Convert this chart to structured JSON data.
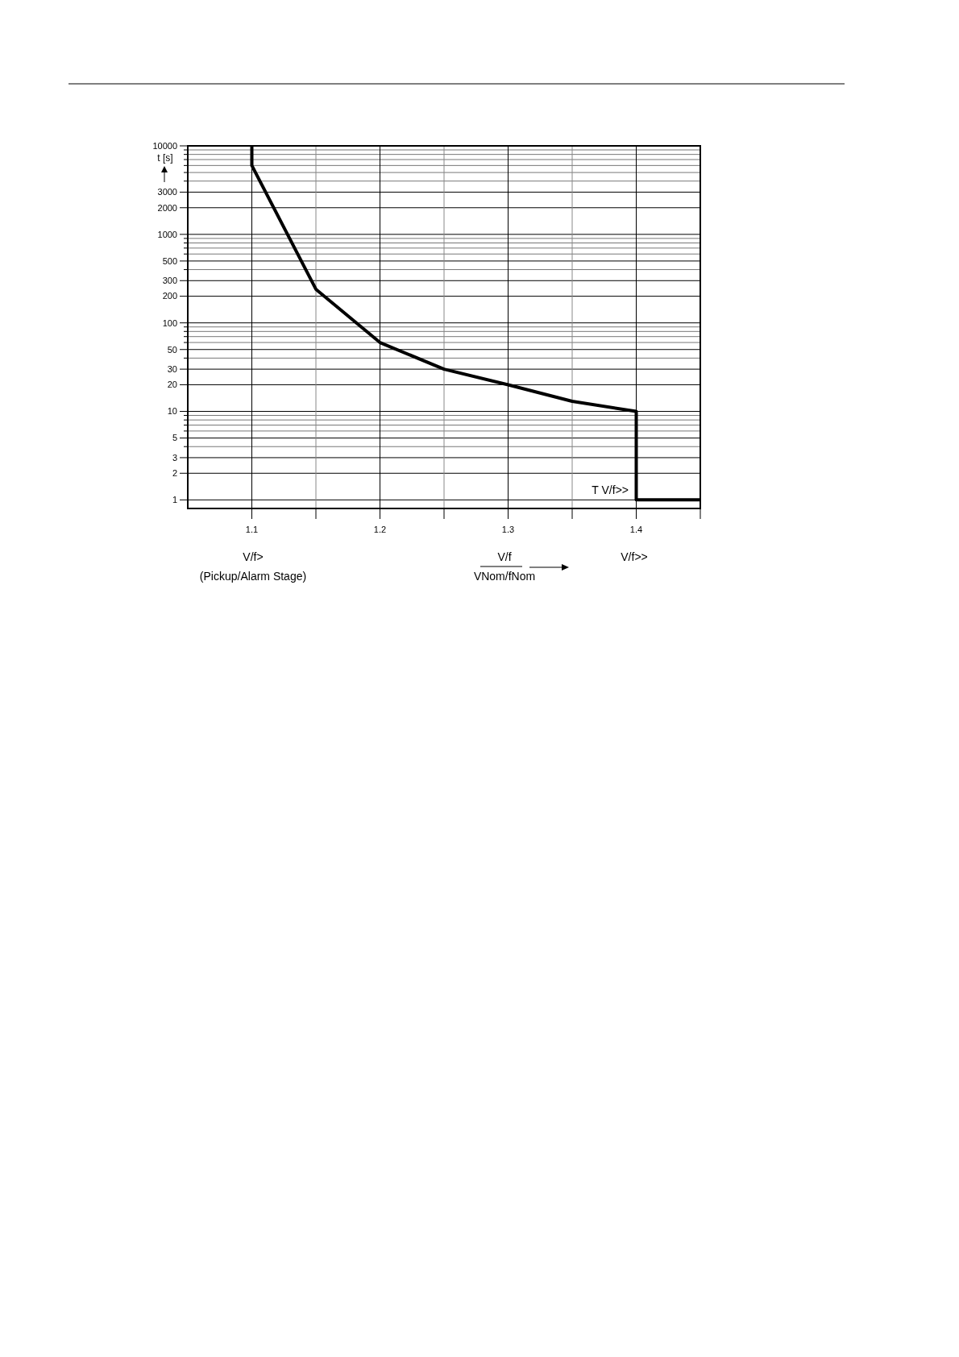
{
  "chart_data": {
    "type": "line",
    "xlabel": "V/f",
    "ylabel": "t [s]",
    "x": [
      1.1,
      1.1,
      1.15,
      1.2,
      1.25,
      1.3,
      1.35,
      1.4,
      1.4,
      1.45
    ],
    "series": [
      {
        "color": "#000000",
        "values": [
          10000,
          6000,
          240,
          60,
          30,
          20,
          13,
          10,
          1,
          1
        ]
      }
    ],
    "xlim": [
      1.05,
      1.45
    ],
    "xticks": [
      1.1,
      {
        "value": 1.15,
        "label": null
      },
      1.2,
      {
        "value": 1.25,
        "label": null
      },
      1.3,
      {
        "value": 1.35,
        "label": null
      },
      1.4,
      {
        "value": 1.45,
        "label": null
      }
    ],
    "ylim": [
      0.8,
      10000
    ],
    "yticks": [
      1,
      2,
      3,
      {
        "value": 4,
        "label": null
      },
      5,
      {
        "value": 6,
        "label": null
      },
      {
        "value": 7,
        "label": null
      },
      {
        "value": 8,
        "label": null
      },
      {
        "value": 9,
        "label": null
      },
      10,
      20,
      30,
      {
        "value": 40,
        "label": null
      },
      50,
      {
        "value": 60,
        "label": null
      },
      {
        "value": 70,
        "label": null
      },
      {
        "value": 80,
        "label": null
      },
      {
        "value": 90,
        "label": null
      },
      100,
      200,
      300,
      {
        "value": 400,
        "label": null
      },
      500,
      {
        "value": 600,
        "label": null
      },
      {
        "value": 700,
        "label": null
      },
      {
        "value": 800,
        "label": null
      },
      {
        "value": 900,
        "label": null
      },
      1000,
      2000,
      3000,
      {
        "value": 4000,
        "label": null
      },
      {
        "value": 5000,
        "label": null
      },
      {
        "value": 6000,
        "label": null
      },
      {
        "value": 7000,
        "label": null
      },
      {
        "value": 8000,
        "label": null
      },
      {
        "value": 9000,
        "label": null
      },
      10000
    ],
    "log": true,
    "grid": true,
    "marker": "none",
    "line_style": "solid",
    "annotations": [
      "T V/f>>",
      "V/f>",
      "(Pickup/Alarm Stage)",
      "V/f>>",
      "VNom/fNom"
    ]
  }
}
